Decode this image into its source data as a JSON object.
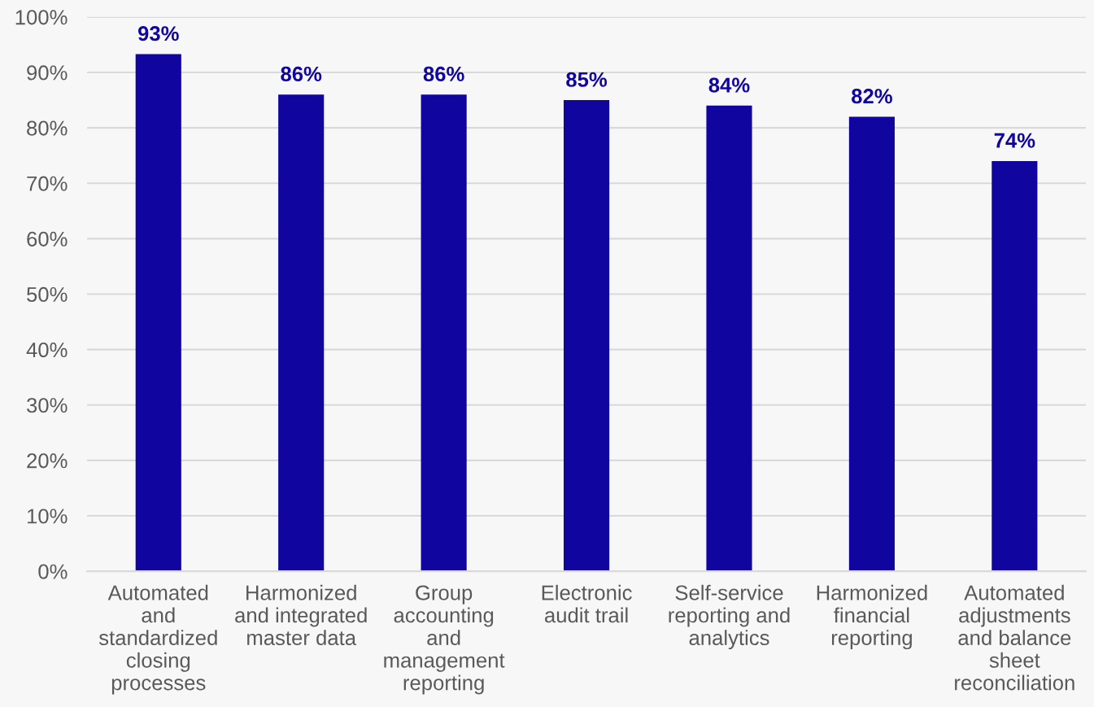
{
  "chart_data": {
    "type": "bar",
    "categories": [
      "Automated\nand\nstandardized\nclosing\nprocesses",
      "Harmonized\nand integrated\nmaster data",
      "Group\naccounting\nand\nmanagement\nreporting",
      "Electronic\naudit trail",
      "Self-service\nreporting and\nanalytics",
      "Harmonized\nfinancial\nreporting",
      "Automated\nadjustments\nand balance\nsheet\nreconciliation"
    ],
    "values": [
      93.3,
      86,
      86,
      85,
      84,
      82,
      74
    ],
    "color": "#10069f",
    "value_labels": [
      "93%",
      "86%",
      "86%",
      "85%",
      "84%",
      "82%",
      "74%"
    ],
    "ylim": [
      0,
      100
    ],
    "yticks": [
      {
        "value": 0,
        "label": "0%"
      },
      {
        "value": 10,
        "label": "10%"
      },
      {
        "value": 20,
        "label": "20%"
      },
      {
        "value": 30,
        "label": "30%"
      },
      {
        "value": 40,
        "label": "40%"
      },
      {
        "value": 50,
        "label": "50%"
      },
      {
        "value": 60,
        "label": "60%"
      },
      {
        "value": 70,
        "label": "70%"
      },
      {
        "value": 80,
        "label": "80%"
      },
      {
        "value": 90,
        "label": "90%"
      },
      {
        "value": 100,
        "label": "100%"
      }
    ],
    "grid": "y"
  }
}
